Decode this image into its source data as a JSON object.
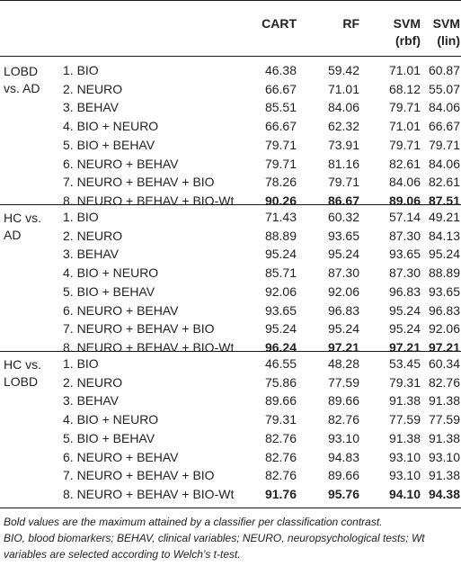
{
  "headers": {
    "cart": "CART",
    "rf": "RF",
    "svm_rbf": [
      "SVM",
      "(rbf)"
    ],
    "svm_lin": [
      "SVM",
      "(lin)"
    ]
  },
  "groups": [
    {
      "label": [
        "LOBD",
        "vs. AD"
      ],
      "rows": [
        {
          "label": "1. BIO",
          "values": [
            "46.38",
            "59.42",
            "71.01",
            "60.87"
          ],
          "bold": false
        },
        {
          "label": "2. NEURO",
          "values": [
            "66.67",
            "71.01",
            "68.12",
            "55.07"
          ],
          "bold": false
        },
        {
          "label": "3. BEHAV",
          "values": [
            "85.51",
            "84.06",
            "79.71",
            "84.06"
          ],
          "bold": false
        },
        {
          "label": "4. BIO + NEURO",
          "values": [
            "66.67",
            "62.32",
            "71.01",
            "66.67"
          ],
          "bold": false
        },
        {
          "label": "5. BIO + BEHAV",
          "values": [
            "79.71",
            "73.91",
            "79.71",
            "79.71"
          ],
          "bold": false
        },
        {
          "label": "6. NEURO + BEHAV",
          "values": [
            "79.71",
            "81.16",
            "82.61",
            "84.06"
          ],
          "bold": false
        },
        {
          "label": "7. NEURO + BEHAV + BIO",
          "values": [
            "78.26",
            "79.71",
            "84.06",
            "82.61"
          ],
          "bold": false
        },
        {
          "label": "8. NEURO + BEHAV + BIO-Wt",
          "values": [
            "90.26",
            "86.67",
            "89.06",
            "87.51"
          ],
          "bold": true
        }
      ]
    },
    {
      "label": [
        "HC vs.",
        "AD"
      ],
      "rows": [
        {
          "label": "1. BIO",
          "values": [
            "71.43",
            "60.32",
            "57.14",
            "49.21"
          ],
          "bold": false
        },
        {
          "label": "2. NEURO",
          "values": [
            "88.89",
            "93.65",
            "87.30",
            "84.13"
          ],
          "bold": false
        },
        {
          "label": "3. BEHAV",
          "values": [
            "95.24",
            "95.24",
            "93.65",
            "95.24"
          ],
          "bold": false
        },
        {
          "label": "4. BIO + NEURO",
          "values": [
            "85.71",
            "87.30",
            "87.30",
            "88.89"
          ],
          "bold": false
        },
        {
          "label": "5. BIO + BEHAV",
          "values": [
            "92.06",
            "92.06",
            "96.83",
            "93.65"
          ],
          "bold": false
        },
        {
          "label": "6. NEURO + BEHAV",
          "values": [
            "93.65",
            "96.83",
            "95.24",
            "96.83"
          ],
          "bold": false
        },
        {
          "label": "7. NEURO + BEHAV + BIO",
          "values": [
            "95.24",
            "95.24",
            "95.24",
            "92.06"
          ],
          "bold": false
        },
        {
          "label": "8. NEURO + BEHAV + BIO-Wt",
          "values": [
            "96.24",
            "97.21",
            "97.21",
            "97.21"
          ],
          "bold": true
        }
      ]
    },
    {
      "label": [
        "HC vs.",
        "LOBD"
      ],
      "rows": [
        {
          "label": "1. BIO",
          "values": [
            "46.55",
            "48.28",
            "53.45",
            "60.34"
          ],
          "bold": false
        },
        {
          "label": "2. NEURO",
          "values": [
            "75.86",
            "77.59",
            "79.31",
            "82.76"
          ],
          "bold": false
        },
        {
          "label": "3. BEHAV",
          "values": [
            "89.66",
            "89.66",
            "91.38",
            "91.38"
          ],
          "bold": false
        },
        {
          "label": "4. BIO + NEURO",
          "values": [
            "79.31",
            "82.76",
            "77.59",
            "77.59"
          ],
          "bold": false
        },
        {
          "label": "5. BIO + BEHAV",
          "values": [
            "82.76",
            "93.10",
            "91.38",
            "91.38"
          ],
          "bold": false
        },
        {
          "label": "6. NEURO + BEHAV",
          "values": [
            "82.76",
            "94.83",
            "93.10",
            "93.10"
          ],
          "bold": false
        },
        {
          "label": "7. NEURO + BEHAV + BIO",
          "values": [
            "82.76",
            "89.66",
            "93.10",
            "91.38"
          ],
          "bold": false
        },
        {
          "label": "8. NEURO + BEHAV + BIO-Wt",
          "values": [
            "91.76",
            "95.76",
            "94.10",
            "94.38"
          ],
          "bold": true
        }
      ]
    }
  ],
  "footnotes": [
    "Bold values are the maximum attained by a classifier per classification contrast.",
    "BIO, blood biomarkers; BEHAV, clinical variables; NEURO, neuropsychological tests; Wt variables are selected according to Welch’s t-test."
  ]
}
